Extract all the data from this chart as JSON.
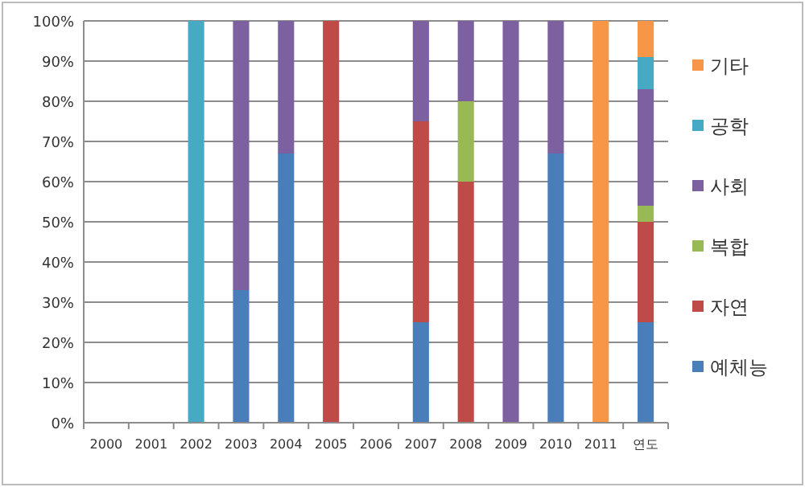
{
  "chart_data": {
    "type": "bar",
    "stacked": true,
    "categories": [
      "2000",
      "2001",
      "2002",
      "2003",
      "2004",
      "2005",
      "2006",
      "2007",
      "2008",
      "2009",
      "2010",
      "2011",
      "연도"
    ],
    "series": [
      {
        "name": "예체능",
        "color": "#4a7ebb",
        "values": [
          null,
          null,
          0,
          33,
          67,
          0,
          null,
          25,
          0,
          0,
          67,
          0,
          25
        ]
      },
      {
        "name": "자연",
        "color": "#be4b48",
        "values": [
          null,
          null,
          0,
          0,
          0,
          100,
          null,
          50,
          60,
          0,
          0,
          0,
          25
        ]
      },
      {
        "name": "복합",
        "color": "#98b954",
        "values": [
          null,
          null,
          0,
          0,
          0,
          0,
          null,
          0,
          20,
          0,
          0,
          0,
          4
        ]
      },
      {
        "name": "사회",
        "color": "#7d60a0",
        "values": [
          null,
          null,
          0,
          67,
          33,
          0,
          null,
          25,
          20,
          100,
          33,
          0,
          29
        ]
      },
      {
        "name": "공학",
        "color": "#46aac5",
        "values": [
          null,
          null,
          100,
          0,
          0,
          0,
          null,
          0,
          0,
          0,
          0,
          0,
          8
        ]
      },
      {
        "name": "기타",
        "color": "#f79646",
        "values": [
          null,
          null,
          0,
          0,
          0,
          0,
          null,
          0,
          0,
          0,
          0,
          100,
          9
        ]
      }
    ],
    "ylim": [
      0,
      100
    ],
    "yticks": [
      {
        "value": 0,
        "label": "0%"
      },
      {
        "value": 10,
        "label": "10%"
      },
      {
        "value": 20,
        "label": "20%"
      },
      {
        "value": 30,
        "label": "30%"
      },
      {
        "value": 40,
        "label": "40%"
      },
      {
        "value": 50,
        "label": "50%"
      },
      {
        "value": 60,
        "label": "60%"
      },
      {
        "value": 70,
        "label": "70%"
      },
      {
        "value": 80,
        "label": "80%"
      },
      {
        "value": 90,
        "label": "90%"
      },
      {
        "value": 100,
        "label": "100%"
      }
    ],
    "grid": "y",
    "legend": "right"
  }
}
